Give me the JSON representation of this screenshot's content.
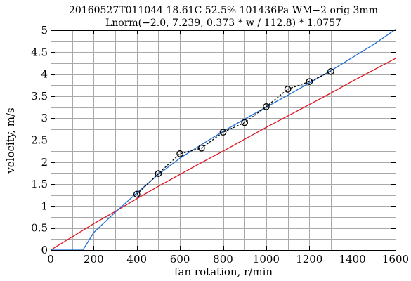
{
  "chart_data": {
    "type": "line",
    "title_lines": [
      "20160527T011044 18.61C 52.5% 101436Pa WM−2 orig 3mm",
      "Lnorm(−2.0, 7.239, 0.373 * w / 112.8) * 1.0757"
    ],
    "xlabel": "fan rotation, r/min",
    "ylabel": "velocity, m/s",
    "xlim": [
      0,
      1600
    ],
    "ylim": [
      0,
      5
    ],
    "x_ticks": [
      0,
      200,
      400,
      600,
      800,
      1000,
      1200,
      1400,
      1600
    ],
    "x_tick_labels": [
      "0",
      "200",
      "400",
      "600",
      "800",
      "1000",
      "1200",
      "1400",
      "1600"
    ],
    "y_ticks": [
      0,
      0.5,
      1,
      1.5,
      2,
      2.5,
      3,
      3.5,
      4,
      4.5,
      5
    ],
    "y_tick_labels": [
      "0",
      "0.5",
      "1",
      "1.5",
      "2",
      "2.5",
      "3",
      "3.5",
      "4",
      "4.5",
      "5"
    ],
    "x_minor_step": 100,
    "y_minor_step": 0.25,
    "grid": true,
    "series": [
      {
        "style": "measured",
        "color": "#000000",
        "marker": "circle",
        "line": "dashed",
        "x": [
          400,
          500,
          600,
          700,
          800,
          900,
          1000,
          1100,
          1200,
          1300
        ],
        "y": [
          1.27,
          1.74,
          2.19,
          2.32,
          2.68,
          2.9,
          3.26,
          3.66,
          3.83,
          4.06
        ]
      },
      {
        "style": "fit",
        "color": "#1f6fd6",
        "line": "solid",
        "x": [
          0,
          150,
          200,
          300,
          400,
          500,
          600,
          700,
          800,
          900,
          1000,
          1100,
          1200,
          1300,
          1400,
          1500,
          1600
        ],
        "y": [
          0,
          0,
          0.4,
          0.86,
          1.3,
          1.72,
          2.09,
          2.4,
          2.7,
          2.98,
          3.25,
          3.52,
          3.8,
          4.08,
          4.38,
          4.68,
          5.02
        ]
      },
      {
        "style": "fit",
        "color": "#e0141e",
        "line": "solid",
        "x": [
          0,
          100,
          200,
          300,
          400,
          500,
          600,
          700,
          800,
          900,
          1000,
          1100,
          1200,
          1300,
          1400,
          1500,
          1600
        ],
        "y": [
          0,
          0.3,
          0.6,
          0.88,
          1.17,
          1.45,
          1.72,
          1.99,
          2.25,
          2.52,
          2.79,
          3.05,
          3.31,
          3.57,
          3.84,
          4.1,
          4.36
        ]
      }
    ]
  }
}
